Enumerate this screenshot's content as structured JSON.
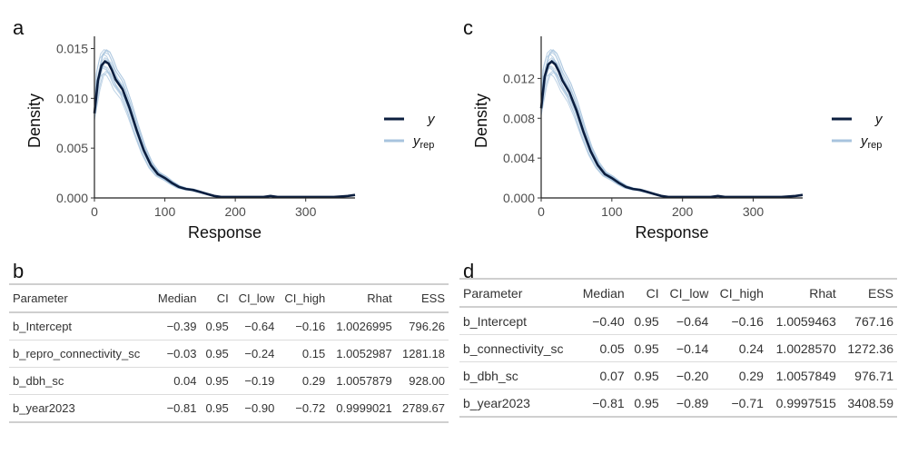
{
  "panels": {
    "a": "a",
    "b": "b",
    "c": "c",
    "d": "d"
  },
  "legend": {
    "y_label": "y",
    "yrep_label": "y",
    "yrep_sub": "rep"
  },
  "colors": {
    "y": "#0b1e3f",
    "yrep": "#a8c4de"
  },
  "chart_data": [
    {
      "type": "line",
      "panel": "a",
      "xlabel": "Response",
      "ylabel": "Density",
      "xlim": [
        0,
        370
      ],
      "ylim": [
        0,
        0.0155
      ],
      "xticks": [
        0,
        100,
        200,
        300
      ],
      "xtick_labels": [
        "0",
        "100",
        "200",
        "300"
      ],
      "yticks": [
        0,
        0.005,
        0.01,
        0.015
      ],
      "ytick_labels": [
        "0.000",
        "0.005",
        "0.010",
        "0.015"
      ],
      "legend": [
        "y",
        "y_rep"
      ],
      "legend_position": "right",
      "series": [
        {
          "name": "y",
          "x": [
            0,
            5,
            10,
            15,
            20,
            25,
            30,
            40,
            50,
            60,
            70,
            80,
            90,
            100,
            110,
            120,
            130,
            140,
            150,
            160,
            170,
            180,
            200,
            220,
            240,
            250,
            260,
            280,
            300,
            320,
            340,
            360,
            370
          ],
          "values": [
            0.0085,
            0.0118,
            0.0133,
            0.0137,
            0.0135,
            0.0128,
            0.0119,
            0.0109,
            0.009,
            0.0068,
            0.0048,
            0.0033,
            0.0024,
            0.002,
            0.0015,
            0.0011,
            0.0009,
            0.0008,
            0.0006,
            0.0004,
            0.0002,
            0.0001,
            0.0001,
            0.0001,
            0.0001,
            0.0002,
            0.0001,
            0.0001,
            0.0001,
            0.0001,
            0.0001,
            0.0002,
            0.0003
          ]
        }
      ]
    },
    {
      "type": "line",
      "panel": "c",
      "xlabel": "Response",
      "ylabel": "Density",
      "xlim": [
        0,
        370
      ],
      "ylim": [
        0,
        0.0155
      ],
      "xticks": [
        0,
        100,
        200,
        300
      ],
      "xtick_labels": [
        "0",
        "100",
        "200",
        "300"
      ],
      "yticks": [
        0,
        0.004,
        0.008,
        0.012
      ],
      "ytick_labels": [
        "0.000",
        "0.004",
        "0.008",
        "0.012"
      ],
      "legend": [
        "y",
        "y_rep"
      ],
      "legend_position": "right",
      "series": [
        {
          "name": "y",
          "x": [
            0,
            5,
            10,
            15,
            20,
            25,
            30,
            40,
            50,
            60,
            70,
            80,
            90,
            100,
            110,
            120,
            130,
            140,
            150,
            160,
            170,
            180,
            200,
            220,
            240,
            250,
            260,
            280,
            300,
            320,
            340,
            360,
            370
          ],
          "values": [
            0.009,
            0.0122,
            0.0134,
            0.0137,
            0.0134,
            0.0127,
            0.0118,
            0.0106,
            0.0088,
            0.0066,
            0.0047,
            0.0033,
            0.0024,
            0.002,
            0.0015,
            0.0011,
            0.0009,
            0.0008,
            0.0006,
            0.0004,
            0.0002,
            0.0001,
            0.0001,
            0.0001,
            0.0001,
            0.0002,
            0.0001,
            0.0001,
            0.0001,
            0.0001,
            0.0001,
            0.0002,
            0.0003
          ]
        }
      ]
    },
    {
      "type": "table",
      "panel": "b",
      "columns": [
        "Parameter",
        "Median",
        "CI",
        "CI_low",
        "CI_high",
        "Rhat",
        "ESS"
      ],
      "rows": [
        [
          "b_Intercept",
          "-0.39",
          "0.95",
          "-0.64",
          "-0.16",
          "1.0026995",
          "796.26"
        ],
        [
          "b_repro_connectivity_sc",
          "-0.03",
          "0.95",
          "-0.24",
          "0.15",
          "1.0052987",
          "1281.18"
        ],
        [
          "b_dbh_sc",
          "0.04",
          "0.95",
          "-0.19",
          "0.29",
          "1.0057879",
          "928.00"
        ],
        [
          "b_year2023",
          "-0.81",
          "0.95",
          "-0.90",
          "-0.72",
          "0.9999021",
          "2789.67"
        ]
      ]
    },
    {
      "type": "table",
      "panel": "d",
      "columns": [
        "Parameter",
        "Median",
        "CI",
        "CI_low",
        "CI_high",
        "Rhat",
        "ESS"
      ],
      "rows": [
        [
          "b_Intercept",
          "-0.40",
          "0.95",
          "-0.64",
          "-0.16",
          "1.0059463",
          "767.16"
        ],
        [
          "b_connectivity_sc",
          "0.05",
          "0.95",
          "-0.14",
          "0.24",
          "1.0028570",
          "1272.36"
        ],
        [
          "b_dbh_sc",
          "0.07",
          "0.95",
          "-0.20",
          "0.29",
          "1.0057849",
          "976.71"
        ],
        [
          "b_year2023",
          "-0.81",
          "0.95",
          "-0.89",
          "-0.71",
          "0.9997515",
          "3408.59"
        ]
      ]
    }
  ]
}
